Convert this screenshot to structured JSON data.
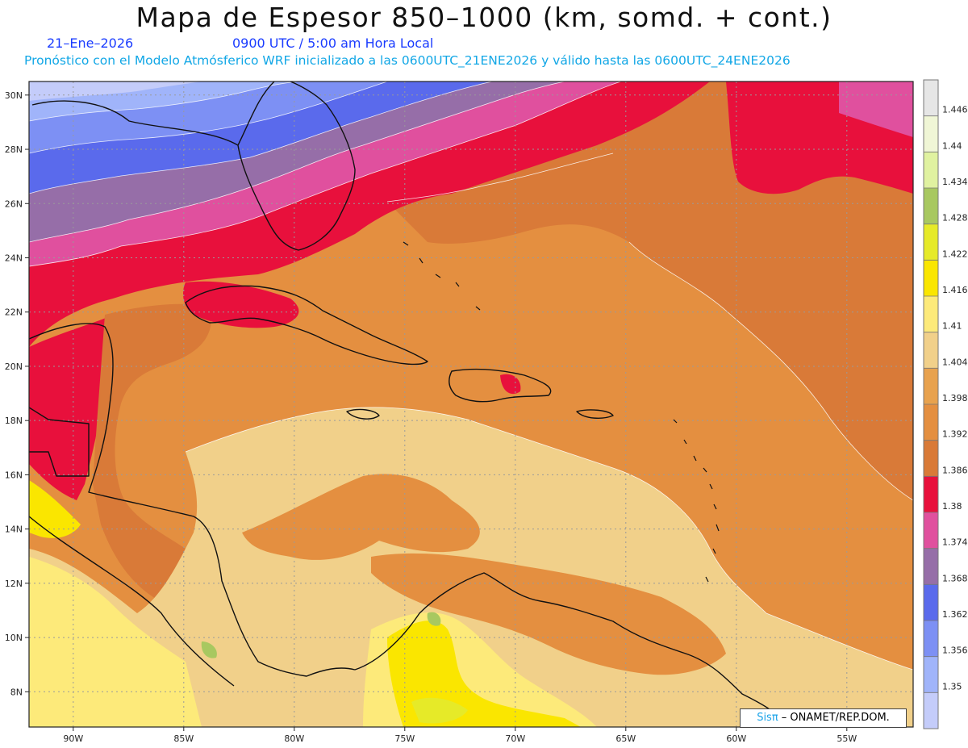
{
  "title": "Mapa de Espesor 850–1000 (km, somd. + cont.)",
  "date": "21–Ene–2026",
  "time": "0900 UTC / 5:00 am Hora Local",
  "description": "Pronóstico con el Modelo Atmósferico WRF inicializado a las 0600UTC_21ENE2026 y válido hasta las  0600UTC_24ENE2026",
  "map": {
    "lon_range": [
      -92,
      -52
    ],
    "lat_range": [
      6.7,
      30.5
    ],
    "lat_ticks": [
      {
        "value": 30,
        "label": "30N"
      },
      {
        "value": 28,
        "label": "28N"
      },
      {
        "value": 26,
        "label": "26N"
      },
      {
        "value": 24,
        "label": "24N"
      },
      {
        "value": 22,
        "label": "22N"
      },
      {
        "value": 20,
        "label": "20N"
      },
      {
        "value": 18,
        "label": "18N"
      },
      {
        "value": 16,
        "label": "16N"
      },
      {
        "value": 14,
        "label": "14N"
      },
      {
        "value": 12,
        "label": "12N"
      },
      {
        "value": 10,
        "label": "10N"
      },
      {
        "value": 8,
        "label": "8N"
      }
    ],
    "lon_ticks": [
      {
        "value": -90,
        "label": "90W"
      },
      {
        "value": -85,
        "label": "85W"
      },
      {
        "value": -80,
        "label": "80W"
      },
      {
        "value": -75,
        "label": "75W"
      },
      {
        "value": -70,
        "label": "70W"
      },
      {
        "value": -65,
        "label": "65W"
      },
      {
        "value": -60,
        "label": "60W"
      },
      {
        "value": -55,
        "label": "55W"
      }
    ]
  },
  "colorbar": {
    "labels": [
      "1.446",
      "1.44",
      "1.434",
      "1.428",
      "1.422",
      "1.416",
      "1.41",
      "1.404",
      "1.398",
      "1.392",
      "1.386",
      "1.38",
      "1.374",
      "1.368",
      "1.362",
      "1.356",
      "1.35"
    ],
    "colors": [
      "#e6e6e6",
      "#f0f6d6",
      "#e0f2a0",
      "#a8c860",
      "#e6ea28",
      "#fae600",
      "#fdea7a",
      "#f1d08a",
      "#e8a24e",
      "#e48f40",
      "#d97a38",
      "#e8103c",
      "#e0509e",
      "#966ea8",
      "#5a6aec",
      "#7d90f4",
      "#a0b4fa",
      "#c4ccfa"
    ]
  },
  "credit": {
    "brand": "Sisπ",
    "text": " – ONAMET/REP.DOM."
  }
}
